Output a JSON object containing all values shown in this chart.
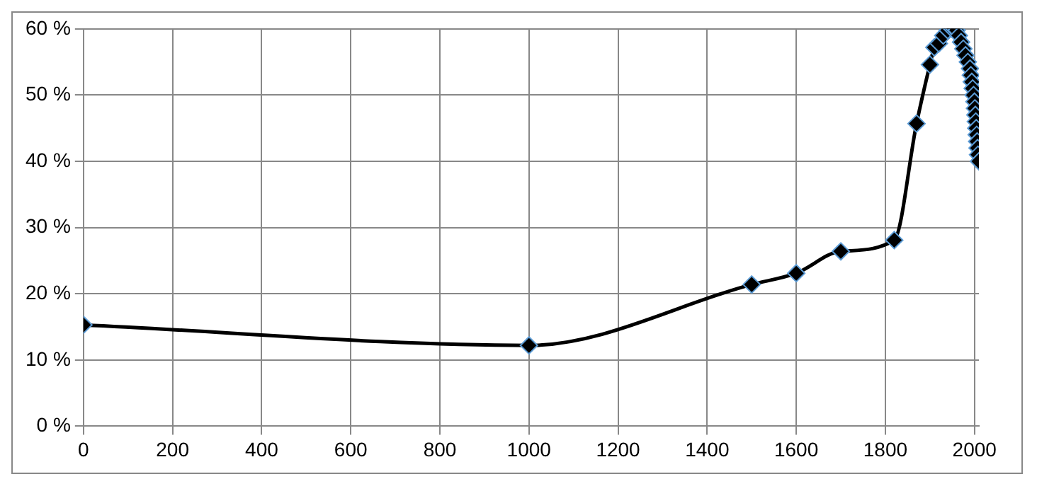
{
  "chart_data": {
    "type": "line",
    "x": [
      0,
      1000,
      1500,
      1600,
      1700,
      1820,
      1870,
      1900,
      1910,
      1920,
      1930,
      1940,
      1950,
      1955,
      1960,
      1965,
      1970,
      1975,
      1980,
      1985,
      1990,
      1992,
      1994,
      1996,
      1998,
      2000,
      2001,
      2002,
      2003,
      2004,
      2005,
      2006,
      2007,
      2008,
      2010
    ],
    "series": [
      {
        "color": "#000000",
        "values": [
          15.3,
          12.2,
          21.4,
          23.1,
          26.4,
          28.1,
          45.7,
          54.6,
          57.2,
          57.8,
          59,
          59.8,
          60,
          60,
          59.8,
          59,
          58,
          57,
          56,
          55,
          54,
          53,
          52,
          51,
          50,
          49,
          48,
          47,
          46,
          45,
          44,
          43,
          42,
          41,
          40
        ]
      }
    ],
    "xlim": [
      0,
      2010
    ],
    "xticks": [
      0,
      200,
      400,
      600,
      800,
      1000,
      1200,
      1400,
      1600,
      1800,
      2000
    ],
    "ylim": [
      0,
      60
    ],
    "yticks": [
      {
        "value": 0,
        "label": "0 %"
      },
      {
        "value": 10,
        "label": "10 %"
      },
      {
        "value": 20,
        "label": "20 %"
      },
      {
        "value": 30,
        "label": "30 %"
      },
      {
        "value": 40,
        "label": "40 %"
      },
      {
        "value": 50,
        "label": "50 %"
      },
      {
        "value": 60,
        "label": "60 %"
      }
    ],
    "grid": true,
    "legend": false,
    "marker": "diamond",
    "line_style": "solid"
  }
}
